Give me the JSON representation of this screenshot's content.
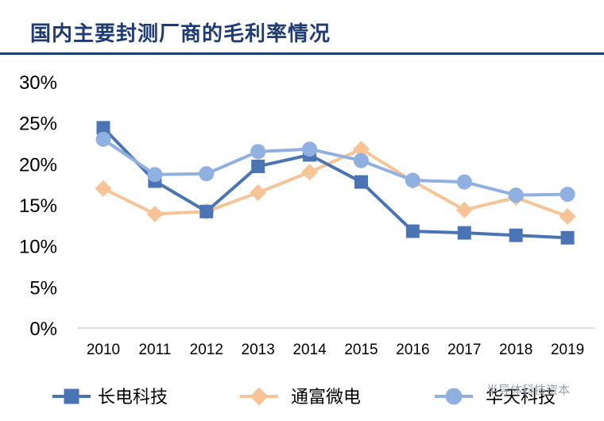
{
  "title": "国内主要封测厂商的毛利率情况",
  "watermark": "半导体科技资本",
  "chart_data": {
    "type": "line",
    "title": "国内主要封测厂商的毛利率情况",
    "xlabel": "",
    "ylabel": "",
    "categories": [
      "2010",
      "2011",
      "2012",
      "2013",
      "2014",
      "2015",
      "2016",
      "2017",
      "2018",
      "2019"
    ],
    "ylim": [
      0,
      30
    ],
    "yticks": [
      0,
      5,
      10,
      15,
      20,
      25,
      30
    ],
    "ytick_labels": [
      "0%",
      "5%",
      "10%",
      "15%",
      "20%",
      "25%",
      "30%"
    ],
    "grid": false,
    "legend_position": "bottom",
    "series": [
      {
        "name": "长电科技",
        "color": "#4a74b4",
        "marker": "square",
        "values": [
          24.4,
          17.9,
          14.2,
          19.7,
          21.1,
          17.8,
          11.8,
          11.6,
          11.3,
          11.0
        ]
      },
      {
        "name": "通富微电",
        "color": "#f7c497",
        "marker": "diamond",
        "values": [
          17.0,
          13.9,
          14.2,
          16.5,
          19.0,
          21.8,
          17.9,
          14.4,
          15.9,
          13.6
        ]
      },
      {
        "name": "华天科技",
        "color": "#8fb0e0",
        "marker": "circle",
        "values": [
          23.0,
          18.7,
          18.8,
          21.5,
          21.8,
          20.4,
          18.0,
          17.8,
          16.2,
          16.3
        ]
      }
    ]
  }
}
